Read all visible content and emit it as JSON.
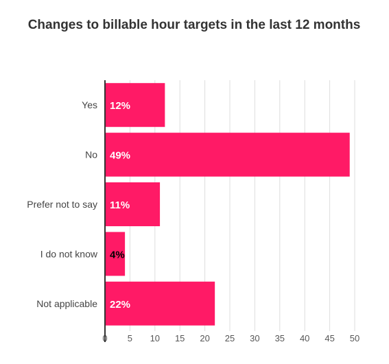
{
  "chart_data": {
    "type": "bar",
    "orientation": "horizontal",
    "title": "Changes to billable hour targets in the last 12 months",
    "categories": [
      "Yes",
      "No",
      "Prefer not to say",
      "I do not know",
      "Not applicable"
    ],
    "values": [
      12,
      49,
      11,
      4,
      22
    ],
    "value_labels": [
      "12%",
      "49%",
      "11%",
      "4%",
      "22%"
    ],
    "xlim": [
      0,
      50
    ],
    "x_ticks": [
      0,
      5,
      10,
      15,
      20,
      25,
      30,
      35,
      40,
      45,
      50
    ],
    "grid": true,
    "legend": "none",
    "colors": {
      "bar": "#ff1a66",
      "grid": "#dddddd",
      "axis": "#333333",
      "label_inside": "#ffffff",
      "label_outside": "#000000"
    }
  }
}
